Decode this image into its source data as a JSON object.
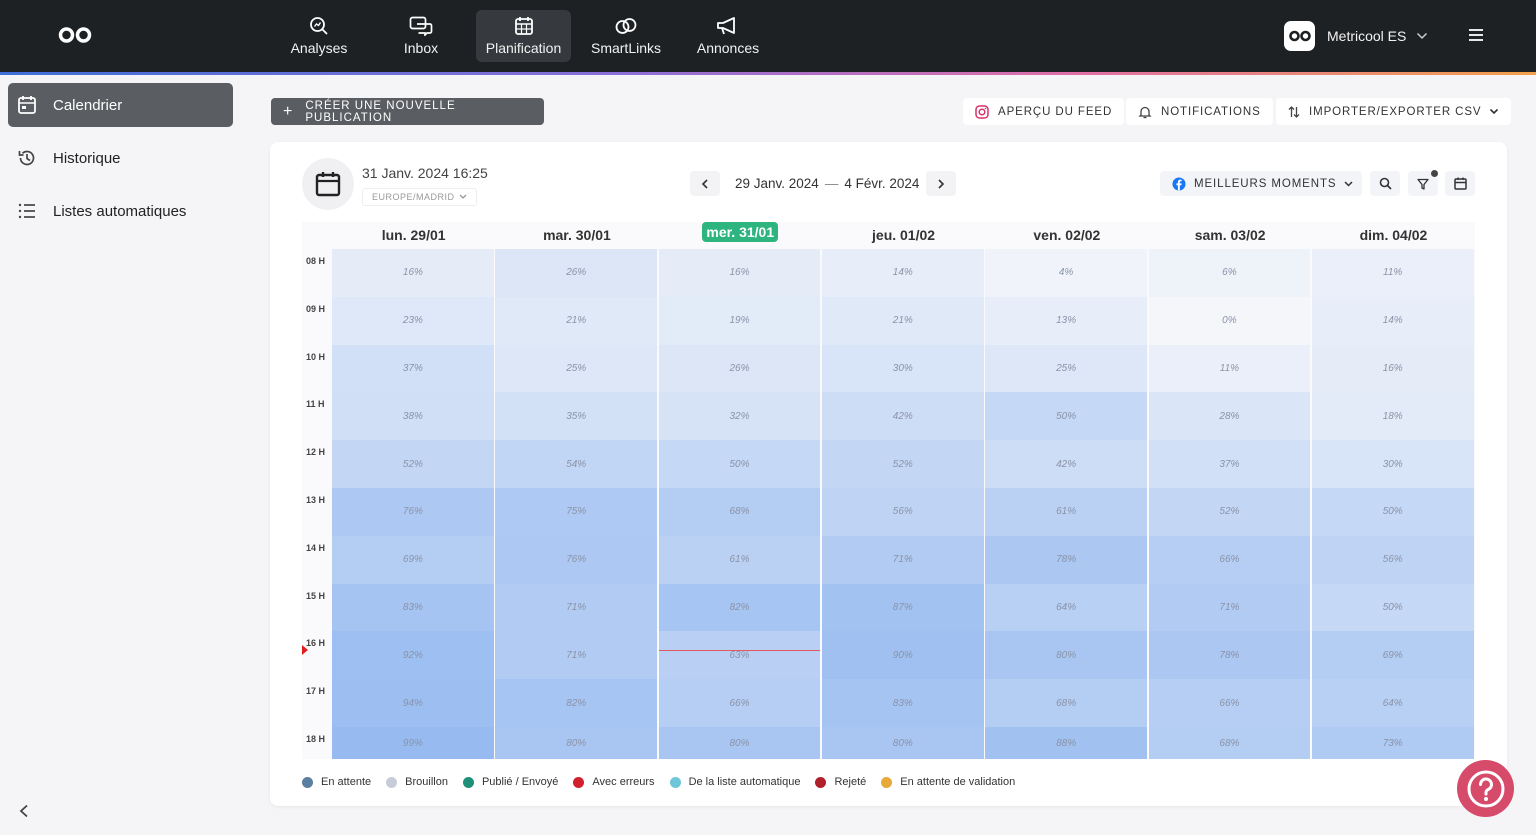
{
  "nav": {
    "items": [
      {
        "label": "Analyses",
        "icon": "analytics-icon"
      },
      {
        "label": "Inbox",
        "icon": "inbox-icon"
      },
      {
        "label": "Planification",
        "icon": "calendar-grid-icon",
        "active": true
      },
      {
        "label": "SmartLinks",
        "icon": "link-icon"
      },
      {
        "label": "Annonces",
        "icon": "megaphone-icon"
      }
    ],
    "account": "Metricool ES"
  },
  "sidebar": {
    "items": [
      {
        "label": "Calendrier",
        "icon": "calendar-icon",
        "active": true
      },
      {
        "label": "Historique",
        "icon": "history-icon"
      },
      {
        "label": "Listes automatiques",
        "icon": "list-icon"
      }
    ]
  },
  "toolbar": {
    "create_label": "CRÉER UNE NOUVELLE PUBLICATION",
    "feed_label": "APERÇU DU FEED",
    "notifications_label": "NOTIFICATIONS",
    "csv_label": "IMPORTER/EXPORTER CSV"
  },
  "calendar": {
    "now": "31 Janv. 2024 16:25",
    "timezone": "EUROPE/MADRID",
    "range_start": "29 Janv. 2024",
    "range_end": "4 Févr. 2024",
    "best_moments_label": "MEILLEURS MOMENTS",
    "days": [
      "lun. 29/01",
      "mar. 30/01",
      "mer. 31/01",
      "jeu. 01/02",
      "ven. 02/02",
      "sam. 03/02",
      "dim. 04/02"
    ],
    "today_index": 2,
    "hours": [
      "08 H",
      "09 H",
      "10 H",
      "11 H",
      "12 H",
      "13 H",
      "14 H",
      "15 H",
      "16 H",
      "17 H",
      "18 H"
    ],
    "percentages": [
      [
        16,
        26,
        16,
        14,
        4,
        6,
        11
      ],
      [
        23,
        21,
        19,
        21,
        13,
        0,
        14
      ],
      [
        37,
        25,
        26,
        30,
        25,
        11,
        16
      ],
      [
        38,
        35,
        32,
        42,
        50,
        28,
        18
      ],
      [
        52,
        54,
        50,
        52,
        42,
        37,
        30
      ],
      [
        76,
        75,
        68,
        56,
        61,
        52,
        50
      ],
      [
        69,
        76,
        61,
        71,
        78,
        66,
        56
      ],
      [
        83,
        71,
        82,
        87,
        64,
        71,
        50
      ],
      [
        92,
        71,
        63,
        90,
        80,
        78,
        69
      ],
      [
        94,
        82,
        66,
        83,
        68,
        66,
        64
      ],
      [
        99,
        80,
        80,
        80,
        88,
        68,
        73
      ]
    ]
  },
  "legend": [
    {
      "label": "En attente",
      "color": "#5a7fa0"
    },
    {
      "label": "Brouillon",
      "color": "#c8ccd8"
    },
    {
      "label": "Publié / Envoyé",
      "color": "#1f8f7a"
    },
    {
      "label": "Avec erreurs",
      "color": "#d21f2a"
    },
    {
      "label": "De la liste automatique",
      "color": "#6ec6d8"
    },
    {
      "label": "Rejeté",
      "color": "#b0202a"
    },
    {
      "label": "En attente de validation",
      "color": "#e6a93a"
    }
  ],
  "colors": {
    "topbar": "#1e2124",
    "today_badge": "#2db47f",
    "help": "#d64a6a"
  }
}
